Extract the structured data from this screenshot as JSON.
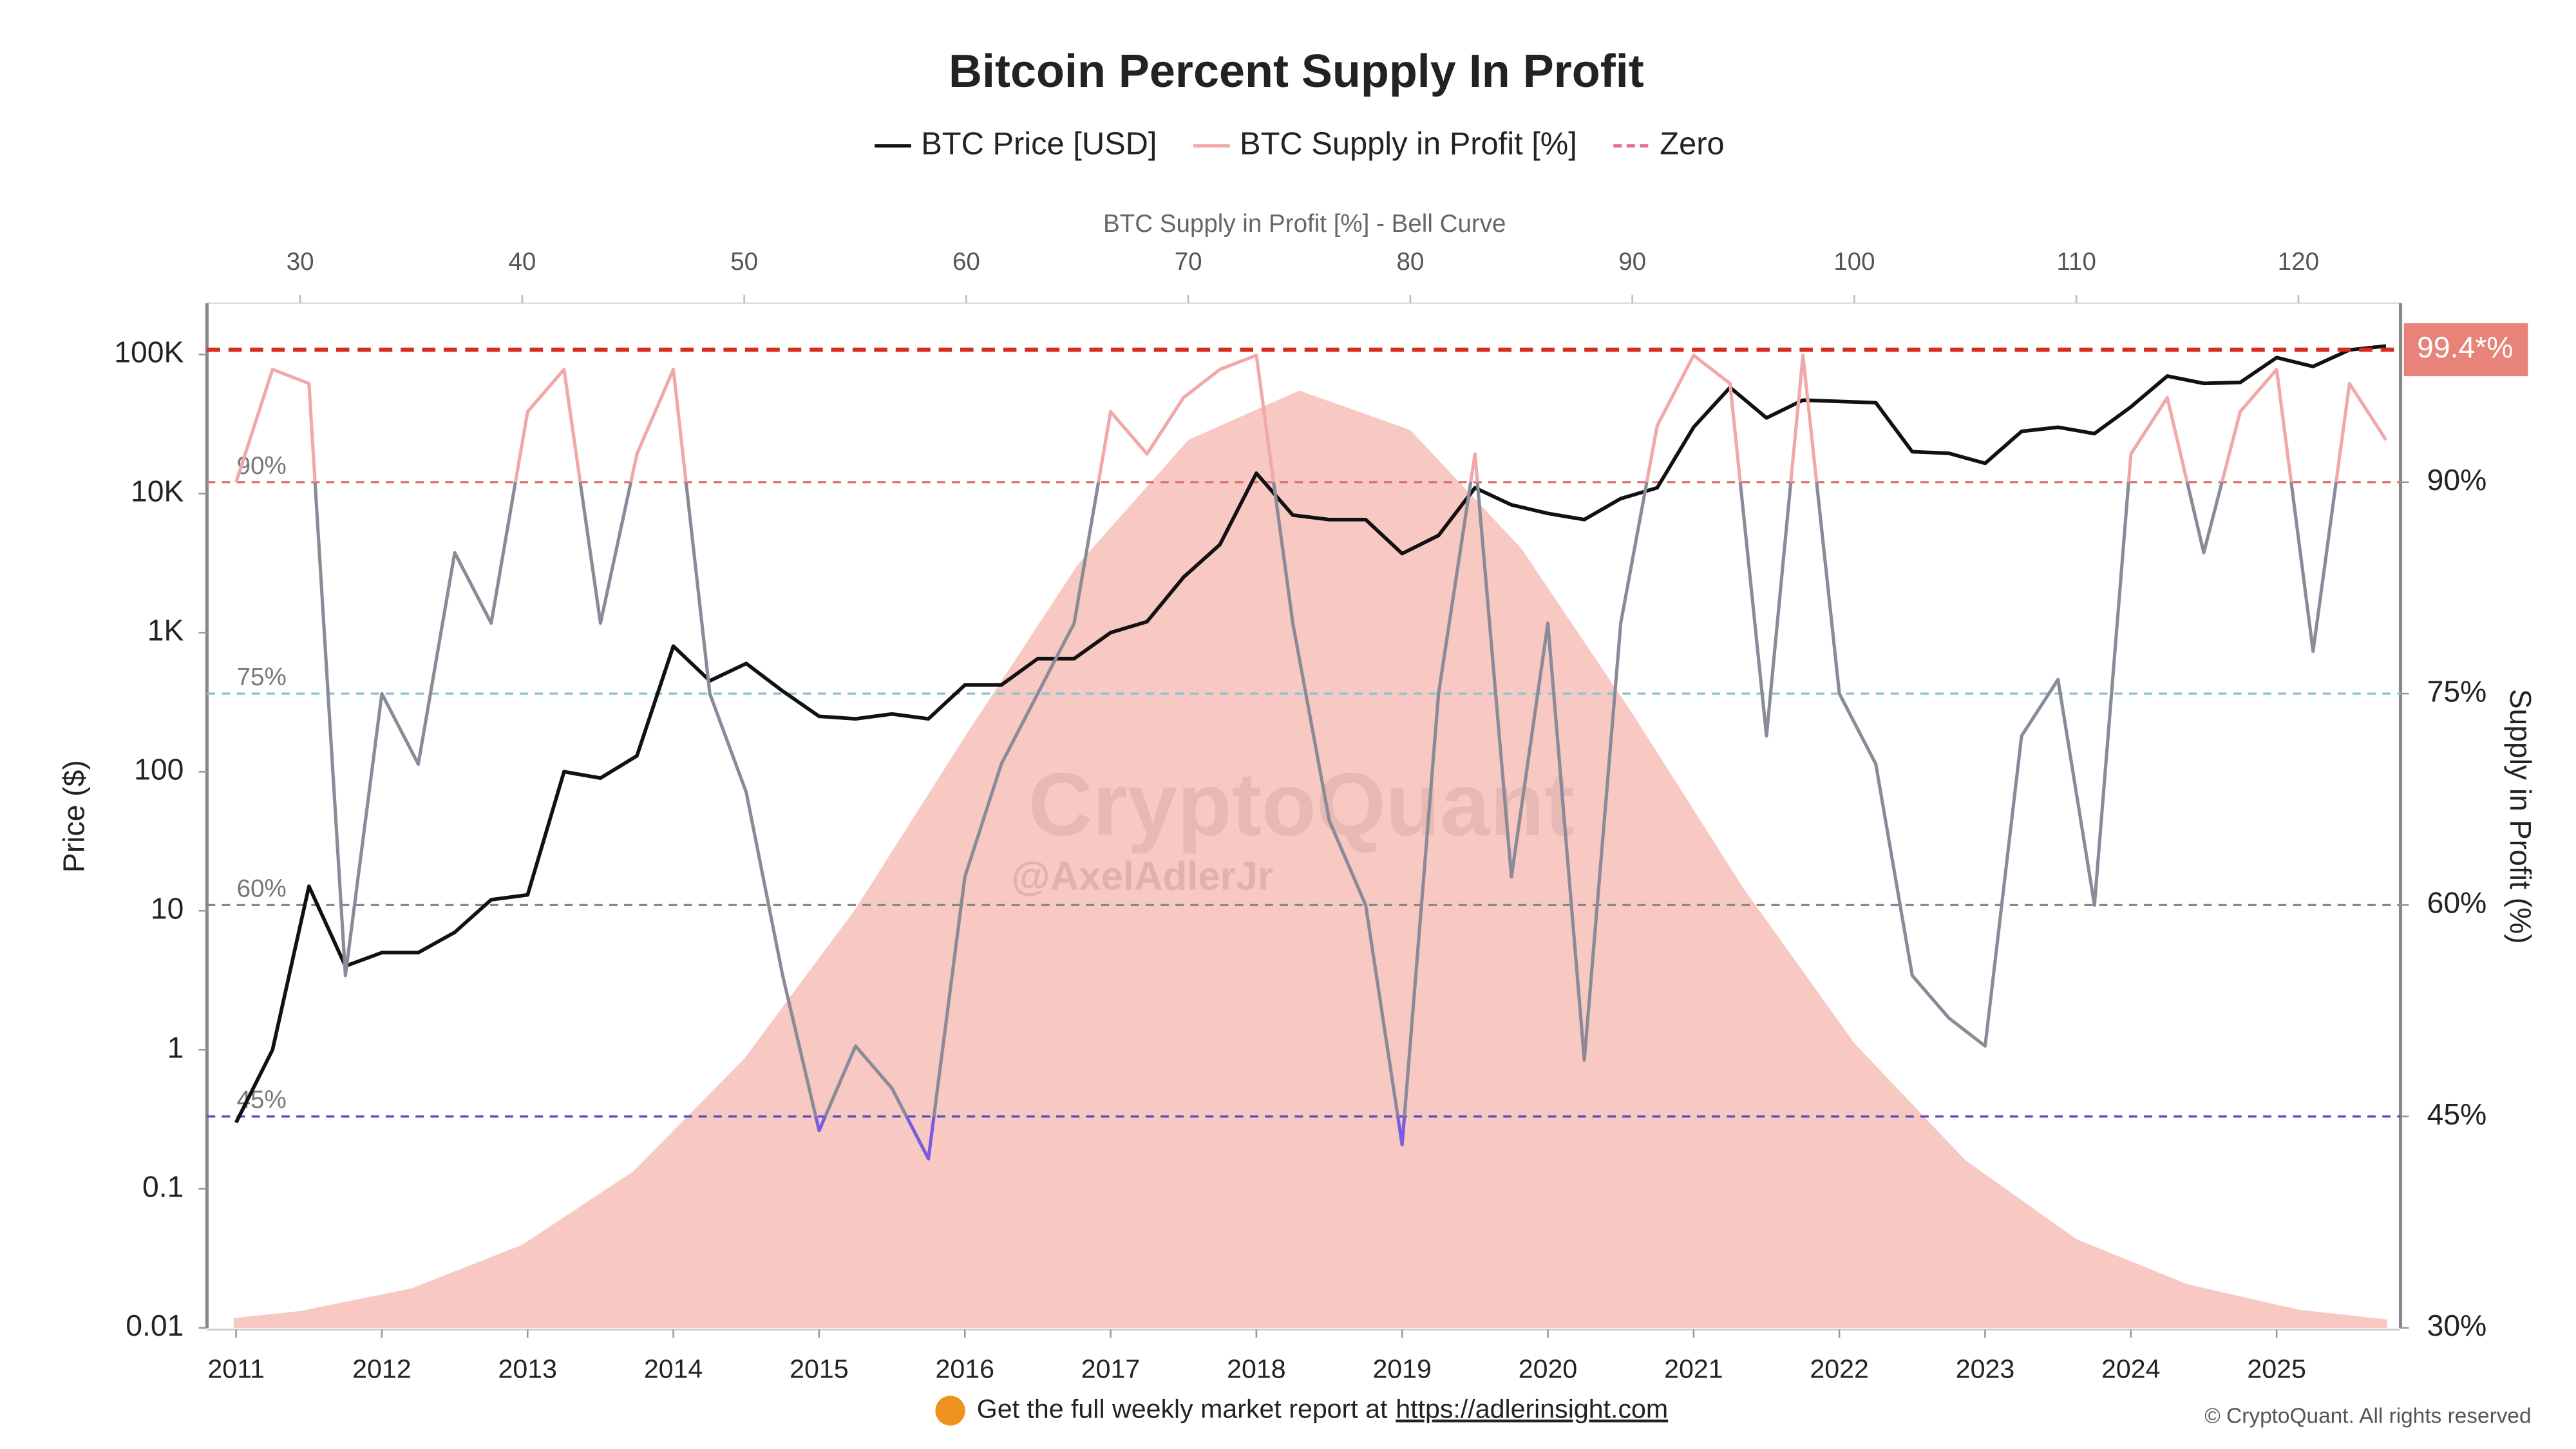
{
  "chart_data": {
    "type": "line",
    "title": "Bitcoin Percent Supply In Profit",
    "x_label_top": "BTC Supply in Profit [%] - Bell Curve",
    "y_label": "Price ($)",
    "y2_label": "Supply in Profit (%)",
    "watermark": "CryptoQuant",
    "watermark_handle": "@AxelAdlerJr",
    "footer_text": "Get the full weekly market report at",
    "footer_link": "https://adlerinsight.com",
    "copyright": "© CryptoQuant. All rights reserved",
    "log_scale": true,
    "xlim": [
      2010.8,
      2025.85
    ],
    "xticks": [
      2011,
      2012,
      2013,
      2014,
      2015,
      2016,
      2017,
      2018,
      2019,
      2020,
      2021,
      2022,
      2023,
      2024,
      2025
    ],
    "x2lim": [
      25.8,
      124.6
    ],
    "x2ticks": [
      30,
      40,
      50,
      60,
      70,
      80,
      90,
      100,
      110,
      120
    ],
    "ylim": [
      0.01,
      234000
    ],
    "yticks": [
      0.01,
      0.1,
      1,
      10,
      100,
      {
        "value": 1000,
        "label": "1K"
      },
      {
        "value": 10000,
        "label": "10K"
      },
      {
        "value": 100000,
        "label": "100K"
      }
    ],
    "y2lim": [
      30,
      102.7
    ],
    "y2ticks": [
      {
        "value": 30,
        "label": "30%"
      },
      {
        "value": 45,
        "label": "45%"
      },
      {
        "value": 60,
        "label": "60%"
      },
      {
        "value": 75,
        "label": "75%"
      },
      {
        "value": 90,
        "label": "90%"
      }
    ],
    "x": [
      2011,
      2011.25,
      2011.5,
      2011.75,
      2012,
      2012.25,
      2012.5,
      2012.75,
      2013,
      2013.25,
      2013.5,
      2013.75,
      2014,
      2014.25,
      2014.5,
      2014.75,
      2015,
      2015.25,
      2015.5,
      2015.75,
      2016,
      2016.25,
      2016.5,
      2016.75,
      2017,
      2017.25,
      2017.5,
      2017.75,
      2018,
      2018.25,
      2018.5,
      2018.75,
      2019,
      2019.25,
      2019.5,
      2019.75,
      2020,
      2020.25,
      2020.5,
      2020.75,
      2021,
      2021.25,
      2021.5,
      2021.75,
      2022,
      2022.25,
      2022.5,
      2022.75,
      2023,
      2023.25,
      2023.5,
      2023.75,
      2024,
      2024.25,
      2024.5,
      2024.75,
      2025,
      2025.25,
      2025.5,
      2025.75
    ],
    "series": [
      {
        "name": "BTC Price [USD]",
        "color": "#111111",
        "axis": "y",
        "values": [
          0.3,
          1,
          15,
          4,
          5,
          5,
          7,
          12,
          13,
          100,
          90,
          130,
          800,
          450,
          600,
          380,
          250,
          240,
          260,
          240,
          420,
          420,
          650,
          650,
          1000,
          1200,
          2500,
          4300,
          14000,
          7000,
          6500,
          6500,
          3700,
          5000,
          11000,
          8300,
          7200,
          6500,
          9200,
          11000,
          30000,
          58000,
          35000,
          47000,
          46000,
          45000,
          20000,
          19500,
          16500,
          28000,
          30000,
          27000,
          42000,
          70000,
          62000,
          63000,
          95000,
          82000,
          108000,
          115000
        ]
      },
      {
        "name": "BTC Supply in Profit [%]",
        "color": "#f0a8a8",
        "color_mid": "#8a8a98",
        "color_low": "#7b5ce0",
        "axis": "y2",
        "values": [
          90,
          98,
          97,
          55,
          75,
          70,
          85,
          80,
          95,
          98,
          80,
          92,
          98,
          75,
          68,
          55,
          44,
          50,
          47,
          42,
          62,
          70,
          75,
          80,
          95,
          92,
          96,
          98,
          99,
          80,
          66,
          60,
          43,
          75,
          92,
          62,
          80,
          49,
          80,
          94,
          99,
          97,
          72,
          99,
          75,
          70,
          55,
          52,
          50,
          72,
          76,
          60,
          92,
          96,
          85,
          95,
          98,
          78,
          97,
          93
        ]
      },
      {
        "name": "Zero",
        "color": "#e8708a",
        "dash": true
      }
    ],
    "bell_curve": {
      "color": "#f7c2bd",
      "x": [
        27,
        30,
        35,
        40,
        45,
        50,
        55,
        60,
        65,
        70,
        75,
        80,
        85,
        90,
        95,
        100,
        105,
        110,
        115,
        120,
        124
      ],
      "values": [
        30.7,
        31.2,
        32.8,
        35.9,
        41.1,
        49.1,
        59.7,
        72.1,
        84.1,
        93.0,
        96.5,
        93.7,
        85.3,
        73.6,
        61.2,
        50.2,
        41.9,
        36.3,
        33.1,
        31.3,
        30.6
      ]
    },
    "levels": [
      {
        "value": 90,
        "label": "90%",
        "color": "#d9736e"
      },
      {
        "value": 75,
        "label": "75%",
        "color": "#8cc4d6"
      },
      {
        "value": 60,
        "label": "60%",
        "color": "#888888"
      },
      {
        "value": 45,
        "label": "45%",
        "color": "#5a48c8"
      }
    ],
    "highlight": {
      "value": 99.4,
      "label": "99.4*%",
      "color": "#d62d20",
      "badge_color": "#e8837a"
    }
  }
}
